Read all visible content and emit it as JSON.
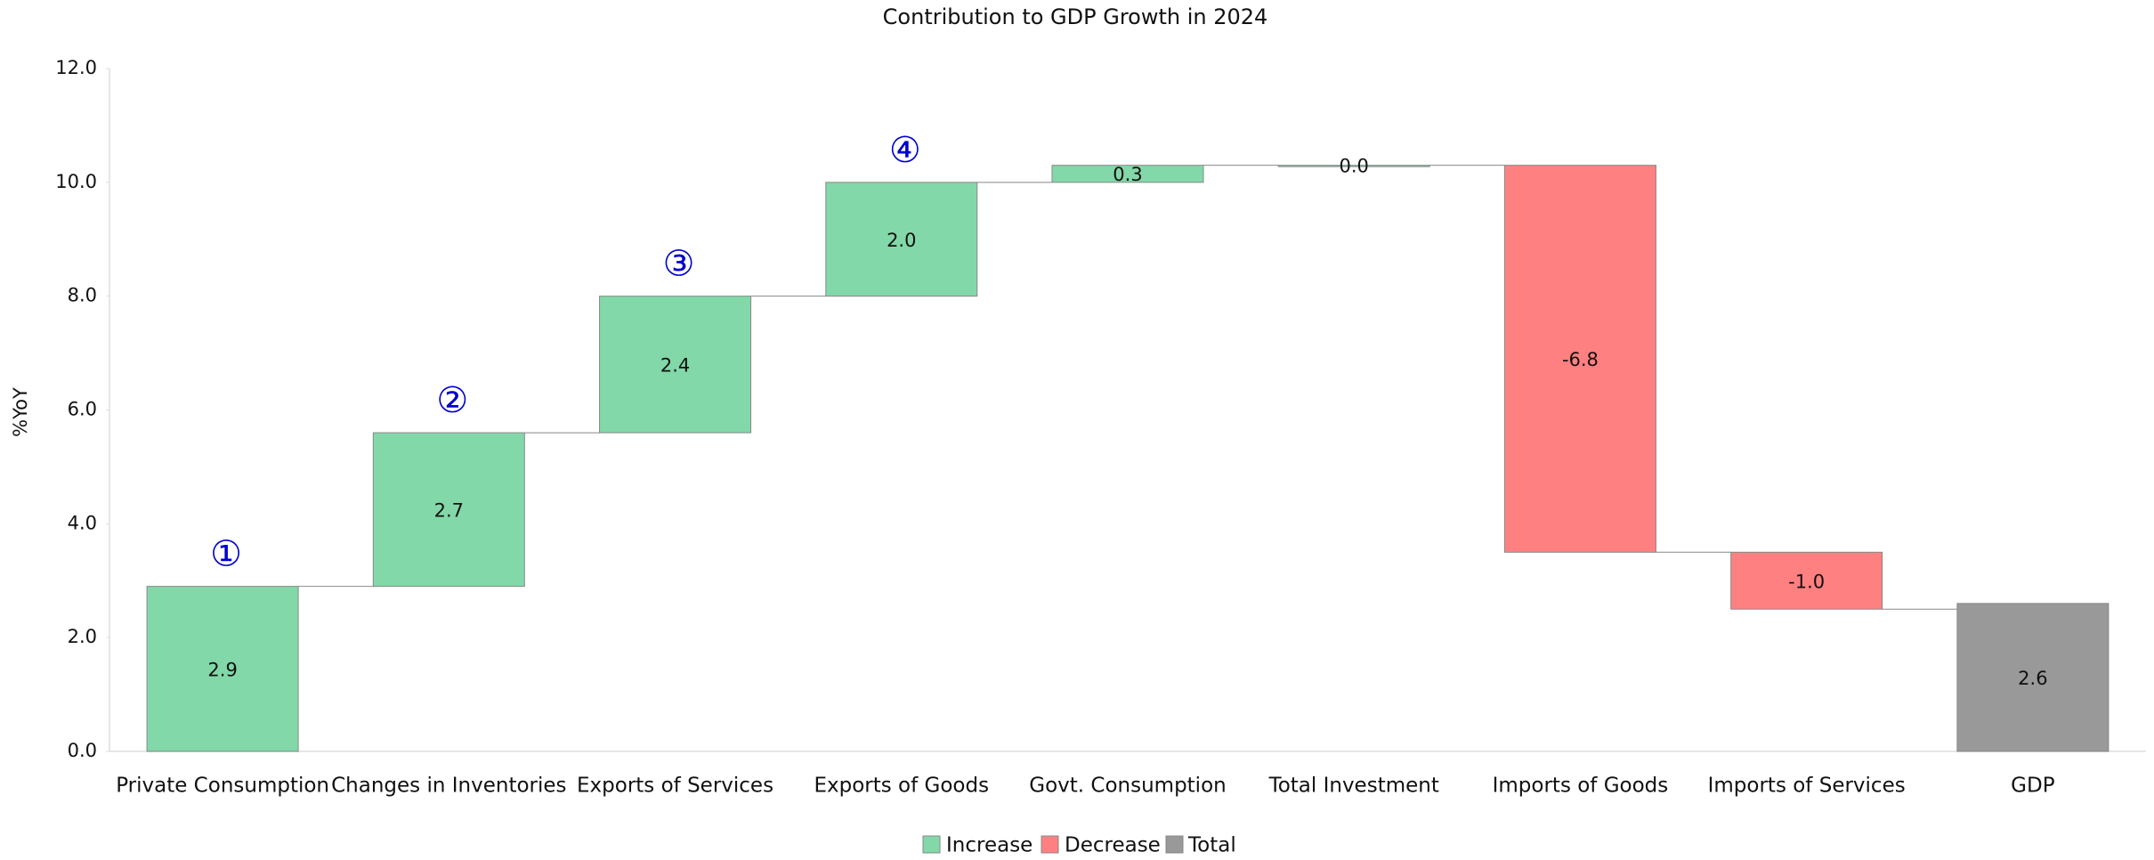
{
  "chart_data": {
    "type": "waterfall",
    "title": "Contribution to GDP Growth in 2024",
    "y_label": "%YoY",
    "categories": [
      "Private Consumption",
      "Changes in Inventories",
      "Exports of Services",
      "Exports of Goods",
      "Govt. Consumption",
      "Total Investment",
      "Imports of Goods",
      "Imports of Services",
      "GDP"
    ],
    "values": [
      2.9,
      2.7,
      2.4,
      2.0,
      0.3,
      0.0,
      -6.8,
      -1.0,
      2.6
    ],
    "value_labels": [
      "2.9",
      "2.7",
      "2.4",
      "2.0",
      "0.3",
      "0.0",
      "-6.8",
      "-1.0",
      "2.6"
    ],
    "total_category": "GDP",
    "legend": [
      {
        "name": "Increase",
        "color": "#82d8a8"
      },
      {
        "name": "Decrease",
        "color": "#ff8080"
      },
      {
        "name": "Total",
        "color": "#999999"
      }
    ],
    "annotations": [
      {
        "text": "①",
        "category": "Private Consumption"
      },
      {
        "text": "②",
        "category": "Changes in Inventories"
      },
      {
        "text": "③",
        "category": "Exports of Services"
      },
      {
        "text": "④",
        "category": "Exports of Goods"
      }
    ],
    "ylim": [
      0,
      12
    ],
    "yticks": [
      {
        "value": 0,
        "label": "0.0"
      },
      {
        "value": 2,
        "label": "2.0"
      },
      {
        "value": 4,
        "label": "4.0"
      },
      {
        "value": 6,
        "label": "6.0"
      },
      {
        "value": 8,
        "label": "8.0"
      },
      {
        "value": 10,
        "label": "10.0"
      },
      {
        "value": 12,
        "label": "12.0"
      }
    ],
    "grid": false
  }
}
